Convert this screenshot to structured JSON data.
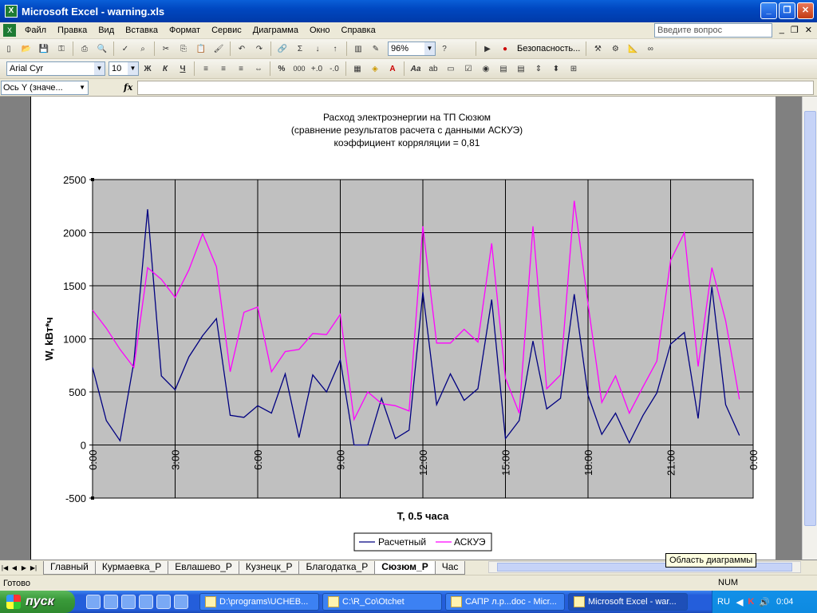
{
  "window": {
    "title": "Microsoft Excel - warning.xls"
  },
  "menu": {
    "items": [
      "Файл",
      "Правка",
      "Вид",
      "Вставка",
      "Формат",
      "Сервис",
      "Диаграмма",
      "Окно",
      "Справка"
    ],
    "help_placeholder": "Введите вопрос"
  },
  "toolbar1": {
    "zoom": "96%",
    "security_label": "Безопасность..."
  },
  "toolbar2": {
    "font": "Arial Cyr",
    "size": "10",
    "bold": "Ж",
    "italic": "К",
    "underline": "Ч",
    "percent": "%",
    "thousands": "000"
  },
  "formula_bar": {
    "name_box": "Ось Y (значе...",
    "fx": "fx"
  },
  "chart_data": {
    "type": "line",
    "title_lines": [
      "Расход электроэнергии на ТП Сюзюм",
      "(сравнение результатов расчета с данными АСКУЭ)",
      "коэффициент корряляции = 0,81"
    ],
    "xlabel": "T, 0.5 часа",
    "ylabel": "W, kBт*ч",
    "ylim": [
      -500,
      2500
    ],
    "y_ticks": [
      "2500",
      "2000",
      "1500",
      "1000",
      "500",
      "0",
      "-500"
    ],
    "x_ticks": [
      "0:00",
      "3:00",
      "6:00",
      "9:00",
      "12:00",
      "15:00",
      "18:00",
      "21:00",
      "0:00"
    ],
    "grid": true,
    "plot_background": "#c0c0c0",
    "legend_position": "bottom",
    "series": [
      {
        "name": "Расчетный",
        "color": "#000080",
        "values": [
          730,
          230,
          40,
          780,
          2220,
          650,
          520,
          830,
          1030,
          1190,
          280,
          260,
          370,
          300,
          670,
          70,
          660,
          500,
          800,
          0,
          0,
          440,
          60,
          140,
          1440,
          380,
          670,
          420,
          530,
          1370,
          60,
          230,
          980,
          340,
          440,
          1420,
          470,
          100,
          300,
          20,
          280,
          490,
          950,
          1060,
          250,
          1490,
          380,
          90
        ]
      },
      {
        "name": "АСКУЭ",
        "color": "#ff00ff",
        "values": [
          1270,
          1100,
          900,
          730,
          1670,
          1560,
          1390,
          1650,
          1990,
          1680,
          690,
          1250,
          1300,
          690,
          880,
          900,
          1050,
          1040,
          1230,
          240,
          500,
          390,
          370,
          320,
          2060,
          960,
          960,
          1090,
          970,
          1900,
          630,
          300,
          2060,
          530,
          660,
          2300,
          1330,
          400,
          650,
          300,
          550,
          790,
          1740,
          2000,
          740,
          1670,
          1170,
          430
        ]
      }
    ]
  },
  "sheet_tabs": [
    "Главный",
    "Курмаевка_Р",
    "Евлашево_Р",
    "Кузнецк_Р",
    "Благодатка_Р",
    "Сюзюм_Р",
    "Час"
  ],
  "active_tab": "Сюзюм_Р",
  "tooltip": "Область диаграммы",
  "status": {
    "text": "Готово",
    "num": "NUM"
  },
  "taskbar": {
    "start": "пуск",
    "tasks": [
      "D:\\programs\\UCHEB...",
      "C:\\R_Co\\Otchet",
      "САПР л.р...doc - Micr...",
      "Microsoft Excel - war..."
    ],
    "lang": "RU",
    "clock": "0:04"
  }
}
